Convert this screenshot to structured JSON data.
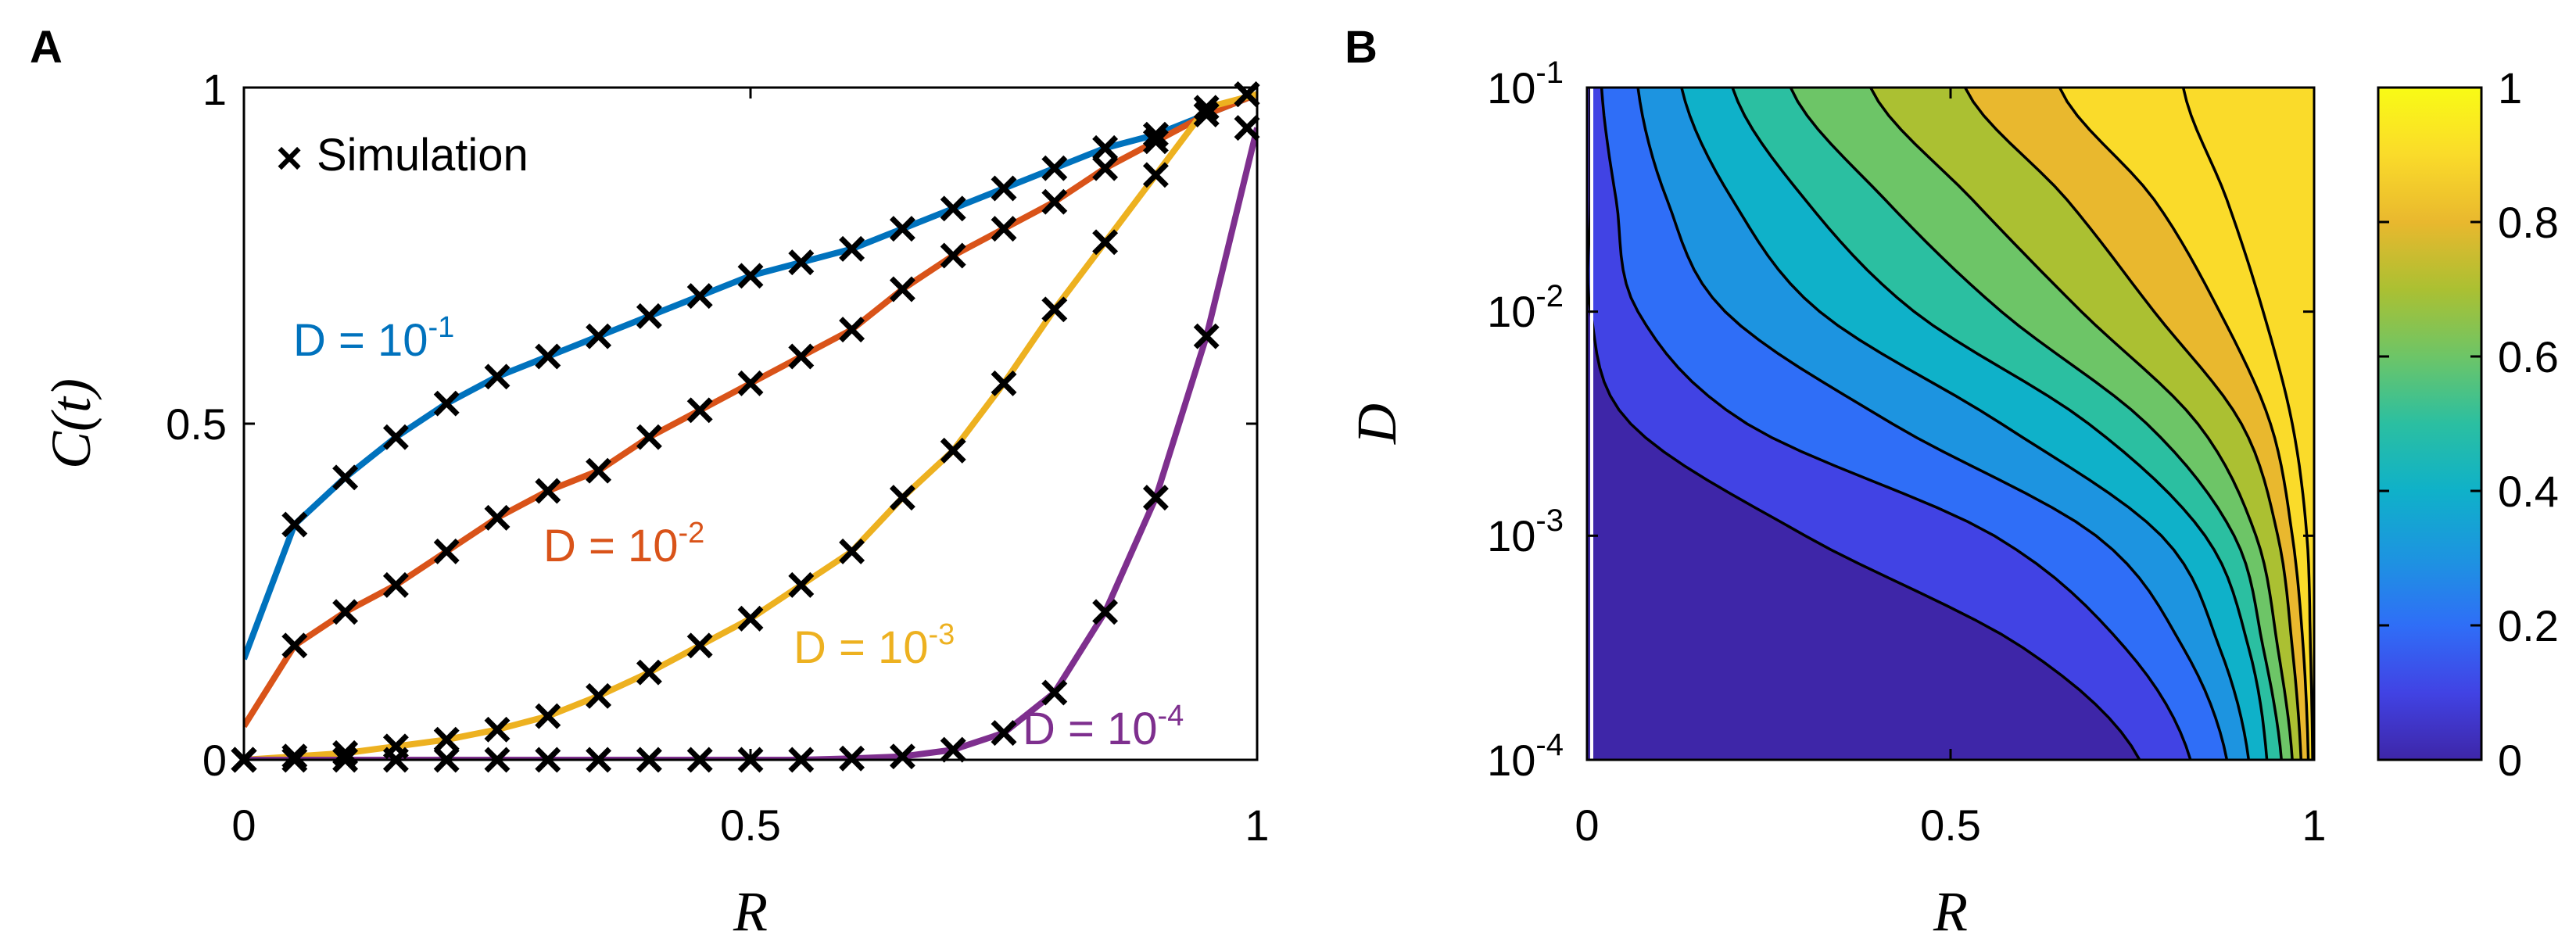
{
  "panels": {
    "a": {
      "letter": "A",
      "y_ticks": [
        "0",
        "0.5",
        "1"
      ],
      "x_ticks": [
        "0",
        "0.5",
        "1"
      ],
      "ylabel_main": "C",
      "ylabel_paren": "(t)",
      "xlabel": "R",
      "legend": {
        "marker": "×",
        "label": "Simulation"
      }
    },
    "b": {
      "letter": "B",
      "y_tick_base": "10",
      "y_tick_exponents": [
        "-1",
        "-2",
        "-3",
        "-4"
      ],
      "x_ticks": [
        "0",
        "0.5",
        "1"
      ],
      "xlabel": "R",
      "ylabel": "D",
      "colorbar_ticks": [
        "1",
        "0.8",
        "0.6",
        "0.4",
        "0.2",
        "0"
      ]
    }
  },
  "series_labels": [
    {
      "base": "D = 10",
      "exp": "-1"
    },
    {
      "base": "D = 10",
      "exp": "-2"
    },
    {
      "base": "D = 10",
      "exp": "-3"
    },
    {
      "base": "D = 10",
      "exp": "-4"
    }
  ],
  "chart_data": [
    {
      "type": "line",
      "title": "",
      "xlabel": "R",
      "ylabel": "C(t)",
      "xlim": [
        0,
        1
      ],
      "ylim": [
        0,
        1
      ],
      "grid": false,
      "legend": "top-left",
      "x": [
        0,
        0.05,
        0.1,
        0.15,
        0.2,
        0.25,
        0.3,
        0.35,
        0.4,
        0.45,
        0.5,
        0.55,
        0.6,
        0.65,
        0.7,
        0.75,
        0.8,
        0.85,
        0.9,
        0.95,
        1.0
      ],
      "series": [
        {
          "name": "D = 10^-1",
          "color": "#0072BD",
          "values": [
            0.15,
            0.35,
            0.42,
            0.48,
            0.53,
            0.57,
            0.6,
            0.63,
            0.66,
            0.69,
            0.72,
            0.74,
            0.76,
            0.79,
            0.82,
            0.85,
            0.88,
            0.91,
            0.93,
            0.96,
            0.99
          ]
        },
        {
          "name": "D = 10^-2",
          "color": "#D95319",
          "values": [
            0.05,
            0.17,
            0.22,
            0.26,
            0.31,
            0.36,
            0.4,
            0.43,
            0.48,
            0.52,
            0.56,
            0.6,
            0.64,
            0.7,
            0.75,
            0.79,
            0.83,
            0.88,
            0.92,
            0.96,
            0.99
          ]
        },
        {
          "name": "D = 10^-3",
          "color": "#EDB120",
          "values": [
            0.0,
            0.005,
            0.01,
            0.02,
            0.03,
            0.045,
            0.065,
            0.095,
            0.13,
            0.17,
            0.21,
            0.26,
            0.31,
            0.39,
            0.46,
            0.56,
            0.67,
            0.77,
            0.87,
            0.97,
            0.99
          ]
        },
        {
          "name": "D = 10^-4",
          "color": "#7E2F8E",
          "values": [
            0,
            0,
            0,
            0,
            0,
            0,
            0,
            0,
            0,
            0,
            0,
            0,
            0.002,
            0.005,
            0.015,
            0.04,
            0.1,
            0.22,
            0.39,
            0.63,
            0.94
          ]
        }
      ],
      "simulation_markers": {
        "name": "Simulation",
        "marker": "x",
        "color": "#000000",
        "x": [
          0.0,
          0.05,
          0.1,
          0.15,
          0.2,
          0.25,
          0.3,
          0.35,
          0.4,
          0.45,
          0.5,
          0.55,
          0.6,
          0.65,
          0.7,
          0.75,
          0.8,
          0.85,
          0.9,
          0.95,
          0.99
        ],
        "series": [
          [
            0.0,
            0.35,
            0.42,
            0.48,
            0.53,
            0.57,
            0.6,
            0.63,
            0.66,
            0.69,
            0.72,
            0.74,
            0.76,
            0.79,
            0.82,
            0.85,
            0.88,
            0.91,
            0.93,
            0.96,
            0.99
          ],
          [
            0.0,
            0.17,
            0.22,
            0.26,
            0.31,
            0.36,
            0.4,
            0.43,
            0.48,
            0.52,
            0.56,
            0.6,
            0.64,
            0.7,
            0.75,
            0.79,
            0.83,
            0.88,
            0.92,
            0.96,
            0.99
          ],
          [
            0.0,
            0.005,
            0.01,
            0.02,
            0.03,
            0.045,
            0.065,
            0.095,
            0.13,
            0.17,
            0.21,
            0.26,
            0.31,
            0.39,
            0.46,
            0.56,
            0.67,
            0.77,
            0.87,
            0.97,
            0.99
          ],
          [
            0.0,
            0.0,
            0.0,
            0.0,
            0.0,
            0.0,
            0.0,
            0.0,
            0.0,
            0.0,
            0.0,
            0.0,
            0.002,
            0.005,
            0.015,
            0.04,
            0.1,
            0.22,
            0.39,
            0.63,
            0.94
          ]
        ]
      }
    },
    {
      "type": "heatmap",
      "subtype": "filled-contour",
      "title": "",
      "xlabel": "R",
      "ylabel": "D",
      "xlim": [
        0,
        1
      ],
      "ylim": [
        0.0001,
        0.1
      ],
      "yscale": "log",
      "clim": [
        0,
        1
      ],
      "colormap": "parula",
      "levels": [
        0.0,
        0.1,
        0.2,
        0.3,
        0.4,
        0.5,
        0.6,
        0.7,
        0.8,
        0.9,
        1.0
      ],
      "colors": [
        "#3E26A8",
        "#4143E4",
        "#2F6EF7",
        "#1D94E0",
        "#0FB1C9",
        "#2BBFA1",
        "#6DC567",
        "#ABC032",
        "#E9B82E",
        "#FADB2A",
        "#F9FB15"
      ],
      "contour_crossings_R": [
        {
          "D": 0.1,
          "R_by_level": [
            0.005,
            0.02,
            0.07,
            0.13,
            0.2,
            0.28,
            0.39,
            0.52,
            0.65,
            0.82
          ]
        },
        {
          "D": 0.0316,
          "R_by_level": [
            0.005,
            0.04,
            0.11,
            0.2,
            0.3,
            0.41,
            0.53,
            0.66,
            0.78,
            0.88
          ]
        },
        {
          "D": 0.01,
          "R_by_level": [
            0.005,
            0.07,
            0.19,
            0.32,
            0.45,
            0.57,
            0.68,
            0.78,
            0.87,
            0.93
          ]
        },
        {
          "D": 0.00316,
          "R_by_level": [
            0.06,
            0.22,
            0.42,
            0.57,
            0.69,
            0.77,
            0.84,
            0.9,
            0.94,
            0.97
          ]
        },
        {
          "D": 0.001,
          "R_by_level": [
            0.3,
            0.56,
            0.7,
            0.79,
            0.85,
            0.89,
            0.92,
            0.95,
            0.97,
            0.99
          ]
        },
        {
          "D": 0.000316,
          "R_by_level": [
            0.6,
            0.74,
            0.82,
            0.87,
            0.91,
            0.93,
            0.95,
            0.97,
            0.985,
            0.995
          ]
        },
        {
          "D": 0.0001,
          "R_by_level": [
            0.76,
            0.83,
            0.88,
            0.91,
            0.935,
            0.955,
            0.97,
            0.982,
            0.992,
            0.998
          ]
        }
      ]
    }
  ]
}
